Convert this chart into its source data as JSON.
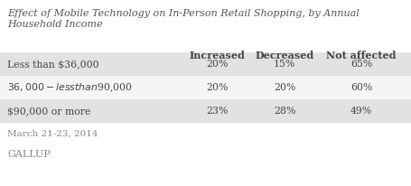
{
  "title_line1": "Effect of Mobile Technology on In-Person Retail Shopping, by Annual",
  "title_line2": "Household Income",
  "columns": [
    "Increased",
    "Decreased",
    "Not affected"
  ],
  "rows": [
    {
      "label": "Less than $36,000",
      "values": [
        "20%",
        "15%",
        "65%"
      ]
    },
    {
      "label": "$36,000-less than $90,000",
      "values": [
        "20%",
        "20%",
        "60%"
      ]
    },
    {
      "label": "$90,000 or more",
      "values": [
        "23%",
        "28%",
        "49%"
      ]
    }
  ],
  "footer": "March 21-23, 2014",
  "source": "GALLUP",
  "row_colors": [
    "#e2e2e2",
    "#f5f5f5",
    "#e2e2e2"
  ],
  "title_color": "#555555",
  "text_color": "#444444",
  "footer_color": "#888888",
  "source_color": "#888888"
}
